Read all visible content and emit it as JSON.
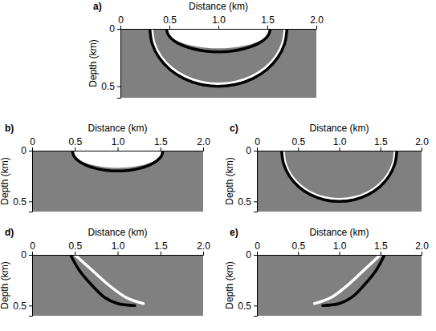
{
  "chart_data": [
    {
      "type": "line",
      "title": "a)",
      "x_label": "Distance (km)",
      "y_label": "Depth (km)",
      "xlim": [
        0,
        2
      ],
      "ylim": [
        0,
        0.6
      ],
      "xticks": [
        0,
        0.5,
        {
          "value": 1,
          "label": "1.0"
        },
        1.5,
        {
          "value": 2,
          "label": "2.0"
        }
      ],
      "yticks": [
        0,
        0.5
      ],
      "series": [
        {
          "type": "area",
          "color": "#ffffff",
          "x": [
            1.53,
            1.512,
            1.459,
            1.375,
            1.265,
            1.137,
            1.0,
            0.863,
            0.735,
            0.625,
            0.541,
            0.488,
            0.47
          ],
          "values": [
            0,
            0.044,
            0.085,
            0.12,
            0.147,
            0.164,
            0.17,
            0.164,
            0.147,
            0.12,
            0.085,
            0.044,
            0
          ]
        },
        {
          "type": "line",
          "color": "#000000",
          "x": [
            1.53,
            1.512,
            1.459,
            1.375,
            1.265,
            1.137,
            1.0,
            0.863,
            0.735,
            0.625,
            0.541,
            0.488,
            0.47
          ],
          "values": [
            0,
            0.052,
            0.1,
            0.141,
            0.173,
            0.193,
            0.2,
            0.193,
            0.173,
            0.141,
            0.1,
            0.052,
            0
          ]
        },
        {
          "type": "line",
          "color": "#ffffff",
          "x": [
            1.68,
            1.657,
            1.589,
            1.481,
            1.34,
            1.176,
            1.0,
            0.824,
            0.66,
            0.519,
            0.411,
            0.343,
            0.32
          ],
          "values": [
            0,
            0.124,
            0.24,
            0.339,
            0.416,
            0.464,
            0.48,
            0.464,
            0.416,
            0.339,
            0.24,
            0.124,
            0
          ]
        },
        {
          "type": "line",
          "color": "#000000",
          "x": [
            1.7,
            1.676,
            1.606,
            1.495,
            1.35,
            1.181,
            1.0,
            0.819,
            0.65,
            0.505,
            0.394,
            0.324,
            0.3
          ],
          "values": [
            0,
            0.129,
            0.25,
            0.354,
            0.433,
            0.483,
            0.5,
            0.483,
            0.433,
            0.354,
            0.25,
            0.129,
            0
          ]
        }
      ]
    },
    {
      "type": "line",
      "title": "b)",
      "x_label": "Distance (km)",
      "y_label": "Depth (km)",
      "xlim": [
        0,
        2
      ],
      "ylim": [
        0,
        0.6
      ],
      "xticks": [
        0,
        0.5,
        {
          "value": 1,
          "label": "1.0"
        },
        1.5,
        {
          "value": 2,
          "label": "2.0"
        }
      ],
      "yticks": [
        0,
        0.5
      ],
      "series": [
        {
          "type": "area",
          "color": "#ffffff",
          "x": [
            1.53,
            1.512,
            1.459,
            1.375,
            1.265,
            1.137,
            1.0,
            0.863,
            0.735,
            0.625,
            0.541,
            0.488,
            0.47
          ],
          "values": [
            0,
            0.044,
            0.085,
            0.12,
            0.147,
            0.164,
            0.17,
            0.164,
            0.147,
            0.12,
            0.085,
            0.044,
            0
          ]
        },
        {
          "type": "line",
          "color": "#000000",
          "x": [
            1.53,
            1.512,
            1.459,
            1.375,
            1.265,
            1.137,
            1.0,
            0.863,
            0.735,
            0.625,
            0.541,
            0.488,
            0.47
          ],
          "values": [
            0,
            0.052,
            0.1,
            0.141,
            0.173,
            0.193,
            0.2,
            0.193,
            0.173,
            0.141,
            0.1,
            0.052,
            0
          ]
        }
      ]
    },
    {
      "type": "line",
      "title": "c)",
      "x_label": "Distance (km)",
      "y_label": "Depth (km)",
      "xlim": [
        0,
        2
      ],
      "ylim": [
        0,
        0.6
      ],
      "xticks": [
        0,
        0.5,
        {
          "value": 1,
          "label": "1.0"
        },
        1.5,
        {
          "value": 2,
          "label": "2.0"
        }
      ],
      "yticks": [
        0,
        0.5
      ],
      "series": [
        {
          "type": "line",
          "color": "#ffffff",
          "x": [
            1.68,
            1.657,
            1.589,
            1.481,
            1.34,
            1.176,
            1.0,
            0.824,
            0.66,
            0.519,
            0.411,
            0.343,
            0.32
          ],
          "values": [
            0,
            0.124,
            0.24,
            0.339,
            0.416,
            0.464,
            0.48,
            0.464,
            0.416,
            0.339,
            0.24,
            0.124,
            0
          ]
        },
        {
          "type": "line",
          "color": "#000000",
          "x": [
            1.7,
            1.676,
            1.606,
            1.495,
            1.35,
            1.181,
            1.0,
            0.819,
            0.65,
            0.505,
            0.394,
            0.324,
            0.3
          ],
          "values": [
            0,
            0.129,
            0.25,
            0.354,
            0.433,
            0.483,
            0.5,
            0.483,
            0.433,
            0.354,
            0.25,
            0.129,
            0
          ]
        }
      ]
    },
    {
      "type": "line",
      "title": "d)",
      "x_label": "Distance (km)",
      "y_label": "Depth (km)",
      "xlim": [
        0,
        2
      ],
      "ylim": [
        0,
        0.6
      ],
      "xticks": [
        0,
        0.5,
        {
          "value": 1,
          "label": "1.0"
        },
        1.5,
        {
          "value": 2,
          "label": "2.0"
        }
      ],
      "yticks": [
        0,
        0.5
      ],
      "series": [
        {
          "type": "line",
          "color": "#000000",
          "x": [
            0.45,
            0.55,
            0.7,
            0.85,
            1.0,
            1.2
          ],
          "values": [
            0,
            0.15,
            0.3,
            0.42,
            0.48,
            0.5
          ]
        },
        {
          "type": "line",
          "color": "#ffffff",
          "x": [
            0.5,
            0.7,
            0.9,
            1.1,
            1.3
          ],
          "values": [
            0,
            0.15,
            0.3,
            0.42,
            0.48
          ]
        }
      ]
    },
    {
      "type": "line",
      "title": "e)",
      "x_label": "Distance (km)",
      "y_label": "Depth (km)",
      "xlim": [
        0,
        2
      ],
      "ylim": [
        0,
        0.6
      ],
      "xticks": [
        0,
        0.5,
        {
          "value": 1,
          "label": "1.0"
        },
        1.5,
        {
          "value": 2,
          "label": "2.0"
        }
      ],
      "yticks": [
        0,
        0.5
      ],
      "series": [
        {
          "type": "line",
          "color": "#000000",
          "x": [
            1.55,
            1.45,
            1.3,
            1.15,
            1.0,
            0.8
          ],
          "values": [
            0,
            0.15,
            0.3,
            0.42,
            0.48,
            0.5
          ]
        },
        {
          "type": "line",
          "color": "#ffffff",
          "x": [
            1.5,
            1.3,
            1.1,
            0.9,
            0.7
          ],
          "values": [
            0,
            0.15,
            0.3,
            0.42,
            0.48
          ]
        }
      ]
    }
  ]
}
